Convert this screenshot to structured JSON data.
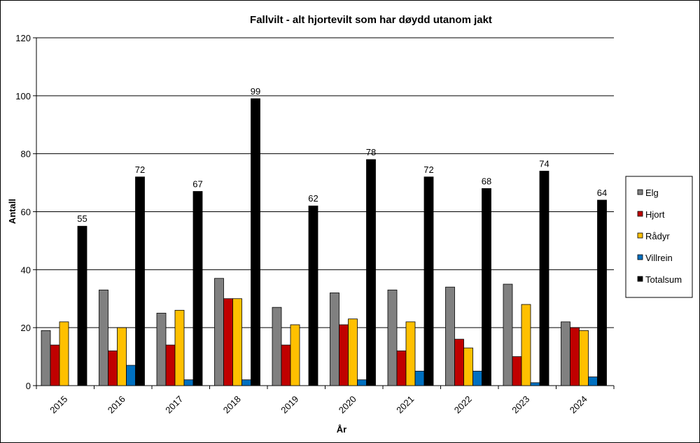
{
  "chart_data": {
    "type": "bar",
    "title": "Fallvilt - alt hjortevilt som har døydd utanom jakt",
    "xlabel": "År",
    "ylabel": "Antall",
    "ylim": [
      0,
      120
    ],
    "yticks": [
      0,
      20,
      40,
      60,
      80,
      100,
      120
    ],
    "grid": true,
    "legend_position": "right",
    "categories": [
      "2015",
      "2016",
      "2017",
      "2018",
      "2019",
      "2020",
      "2021",
      "2022",
      "2023",
      "2024"
    ],
    "series": [
      {
        "name": "Elg",
        "color": "#808080",
        "values": [
          19,
          33,
          25,
          37,
          27,
          32,
          33,
          34,
          35,
          22
        ]
      },
      {
        "name": "Hjort",
        "color": "#C00000",
        "values": [
          14,
          12,
          14,
          30,
          14,
          21,
          12,
          16,
          10,
          20
        ]
      },
      {
        "name": "Rådyr",
        "color": "#FFC000",
        "values": [
          22,
          20,
          26,
          30,
          21,
          23,
          22,
          13,
          28,
          19
        ]
      },
      {
        "name": "Villrein",
        "color": "#0070C0",
        "values": [
          0,
          7,
          2,
          2,
          0,
          2,
          5,
          5,
          1,
          3
        ]
      },
      {
        "name": "Totalsum",
        "color": "#000000",
        "values": [
          55,
          72,
          67,
          99,
          62,
          78,
          72,
          68,
          74,
          64
        ]
      }
    ],
    "data_labels_series": "Totalsum"
  }
}
